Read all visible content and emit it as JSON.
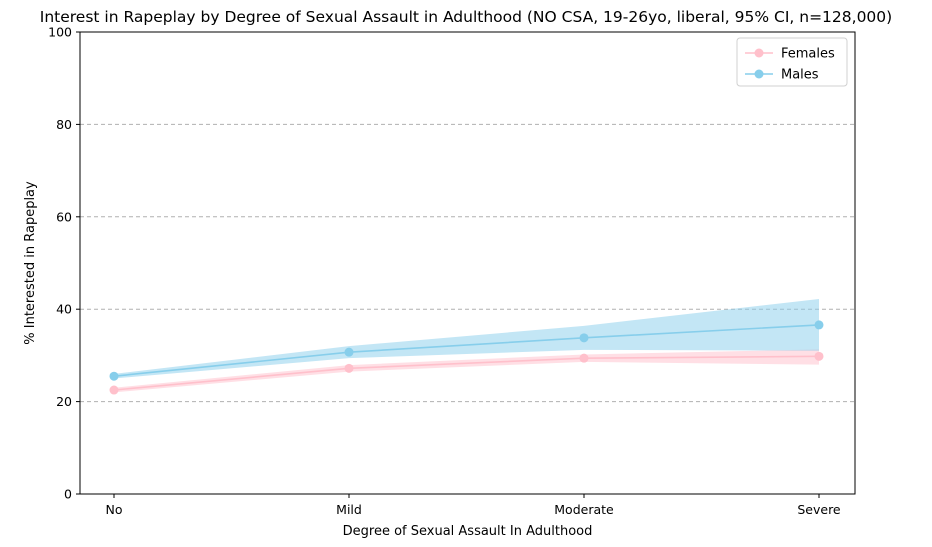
{
  "chart_data": {
    "type": "line",
    "title": "Interest in Rapeplay by Degree of Sexual Assault in Adulthood (NO CSA, 19-26yo, liberal, 95% CI, n=128,000)",
    "xlabel": "Degree of Sexual Assault In Adulthood",
    "ylabel": "% Interested in Rapeplay",
    "categories": [
      "No",
      "Mild",
      "Moderate",
      "Severe"
    ],
    "ylim": [
      0,
      100
    ],
    "yticks": [
      0,
      20,
      40,
      60,
      80,
      100
    ],
    "grid": "y-dashed",
    "legend": "top-right",
    "series": [
      {
        "name": "Females",
        "color": "#ffc0cb",
        "values": [
          22.5,
          27.2,
          29.4,
          29.8
        ],
        "ci_low": [
          22.0,
          26.5,
          28.6,
          28.0
        ],
        "ci_high": [
          23.0,
          27.9,
          30.2,
          31.3
        ]
      },
      {
        "name": "Males",
        "color": "#87ceeb",
        "values": [
          25.5,
          30.7,
          33.8,
          36.6
        ],
        "ci_low": [
          25.0,
          29.4,
          31.2,
          31.0
        ],
        "ci_high": [
          26.0,
          32.0,
          36.4,
          42.2
        ]
      }
    ]
  }
}
